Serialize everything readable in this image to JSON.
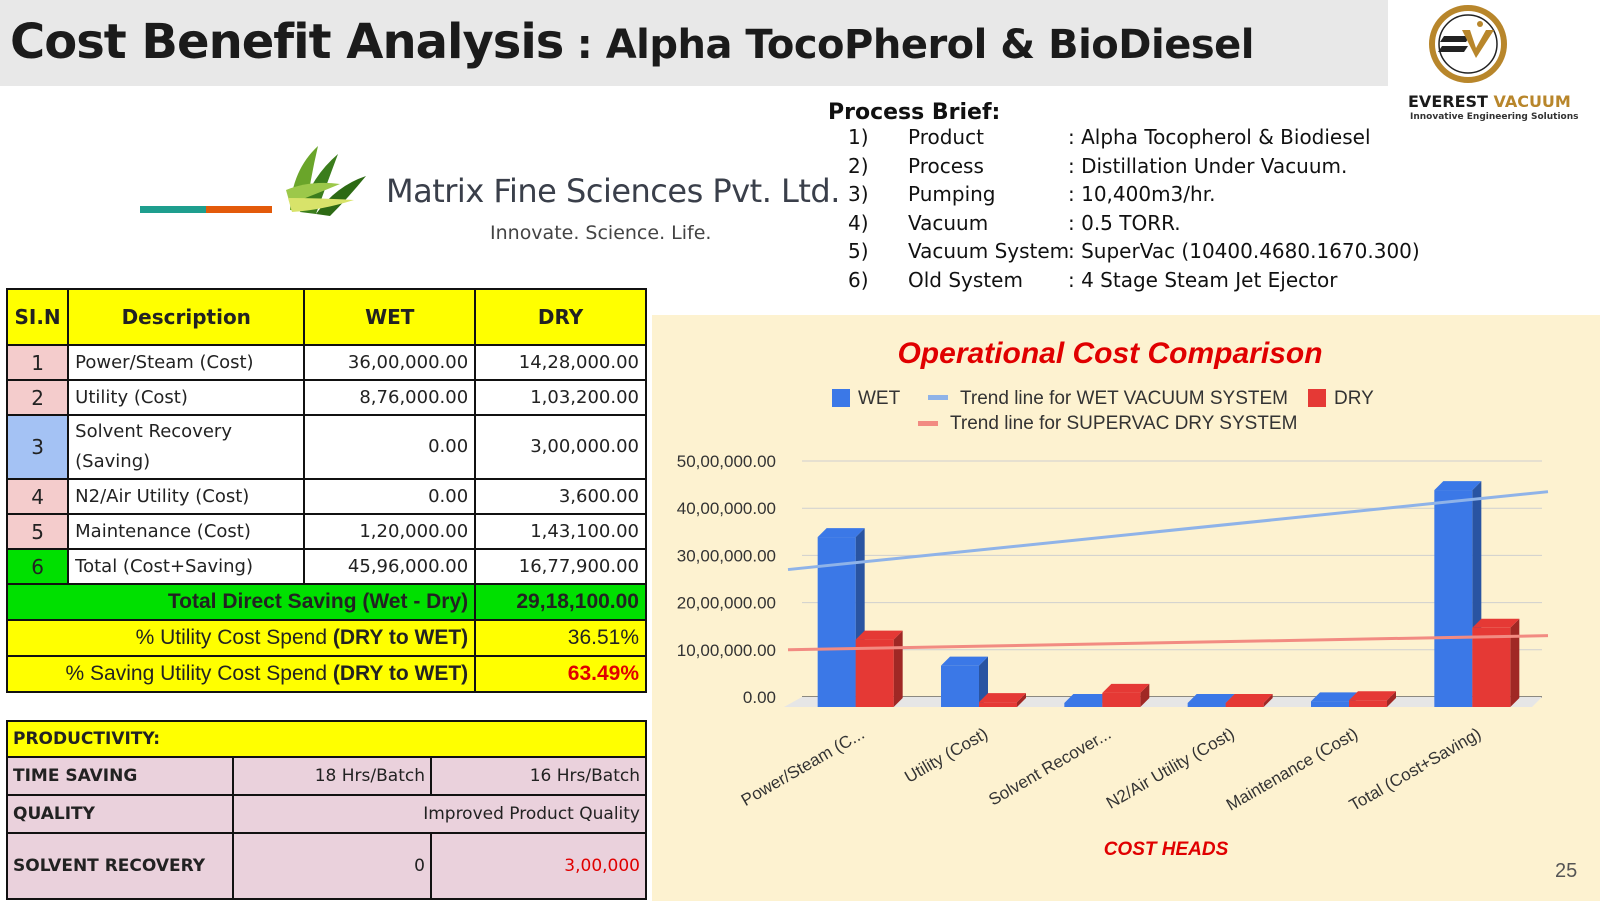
{
  "header": {
    "title_main": "Cost Benefit Analysis",
    "title_sub": " : Alpha TocoPherol & BioDiesel"
  },
  "logos": {
    "everest_name_a": "EVEREST",
    "everest_name_b": "VACUUM",
    "everest_tagline": "Innovative Engineering Solutions",
    "matrix_name": "Matrix Fine Sciences Pvt. Ltd.",
    "matrix_tagline": "Innovate. Science. Life."
  },
  "brief": {
    "heading": "Process Brief:",
    "items": [
      {
        "n": "1)",
        "k": "Product",
        "v": ": Alpha Tocopherol & Biodiesel"
      },
      {
        "n": "2)",
        "k": "Process",
        "v": ": Distillation Under Vacuum."
      },
      {
        "n": "3)",
        "k": "Pumping",
        "v": ": 10,400m3/hr."
      },
      {
        "n": "4)",
        "k": "Vacuum",
        "v": ": 0.5 TORR."
      },
      {
        "n": "5)",
        "k": "Vacuum System",
        "v": ": SuperVac (10400.4680.1670.300)"
      },
      {
        "n": "6)",
        "k": "Old System",
        "v": ": 4 Stage Steam Jet Ejector"
      }
    ]
  },
  "table": {
    "headers": [
      "SI.N",
      "Description",
      "WET",
      "DRY"
    ],
    "rows": [
      {
        "n": "1",
        "desc": "Power/Steam (Cost)",
        "wet": "36,00,000.00",
        "dry": "14,28,000.00"
      },
      {
        "n": "2",
        "desc": "Utility (Cost)",
        "wet": "8,76,000.00",
        "dry": "1,03,200.00"
      },
      {
        "n": "3",
        "desc": "Solvent Recovery (Saving)",
        "wet": "0.00",
        "dry": "3,00,000.00"
      },
      {
        "n": "4",
        "desc": "N2/Air Utility (Cost)",
        "wet": "0.00",
        "dry": "3,600.00"
      },
      {
        "n": "5",
        "desc": "Maintenance (Cost)",
        "wet": "1,20,000.00",
        "dry": "1,43,100.00"
      },
      {
        "n": "6",
        "desc": "Total (Cost+Saving)",
        "wet": "45,96,000.00",
        "dry": "16,77,900.00"
      }
    ],
    "saving_label": "Total Direct Saving (Wet - Dry)",
    "saving_value": "29,18,100.00",
    "util_label_a": "% Utility Cost Spend ",
    "util_label_b": "(DRY to WET)",
    "util_value": "36.51%",
    "saving_pct_label_a": "% Saving Utility Cost Spend ",
    "saving_pct_label_b": "(DRY to WET)",
    "saving_pct_value": "63.49%"
  },
  "productivity": {
    "heading": "PRODUCTIVITY:",
    "time_label": "TIME SAVING",
    "time_wet": "18 Hrs/Batch",
    "time_dry": "16 Hrs/Batch",
    "quality_label": "QUALITY",
    "quality_value": "Improved Product Quality",
    "solvent_label": "SOLVENT RECOVERY",
    "solvent_wet": "0",
    "solvent_dry": "3,00,000"
  },
  "page_number": "25",
  "colors": {
    "wet": "#3b78e7",
    "dry": "#e53935",
    "trend_wet": "#8fb3e8",
    "trend_dry": "#f28b82",
    "chart_bg": "#fdf2d0",
    "title_red": "#e00000"
  },
  "chart_data": {
    "type": "bar",
    "title": "Operational Cost Comparison",
    "xlabel": "COST HEADS",
    "ylabel": "",
    "categories": [
      "Power/Steam (C...",
      "Utility (Cost)",
      "Solvent Recover...",
      "N2/Air Utility (Cost)",
      "Maintenance (Cost)",
      "Total (Cost+Saving)"
    ],
    "series": [
      {
        "name": "WET",
        "values": [
          3600000,
          876000,
          0,
          0,
          120000,
          4596000
        ]
      },
      {
        "name": "DRY",
        "values": [
          1428000,
          103200,
          300000,
          3600,
          143100,
          1677900
        ]
      }
    ],
    "trend_lines": [
      {
        "name": "Trend line for WET VACUUM SYSTEM",
        "start": 2700000,
        "end": 4350000
      },
      {
        "name": "Trend line for SUPERVAC DRY SYSTEM",
        "start": 1000000,
        "end": 1300000
      }
    ],
    "yticks": [
      "0.00",
      "10,00,000.00",
      "20,00,000.00",
      "30,00,000.00",
      "40,00,000.00",
      "50,00,000.00"
    ],
    "ylim": [
      0,
      5000000
    ],
    "legend": [
      "WET",
      "Trend line for WET VACUUM SYSTEM",
      "DRY",
      "Trend line for SUPERVAC DRY SYSTEM"
    ],
    "legend_position": "top",
    "grid": true
  }
}
